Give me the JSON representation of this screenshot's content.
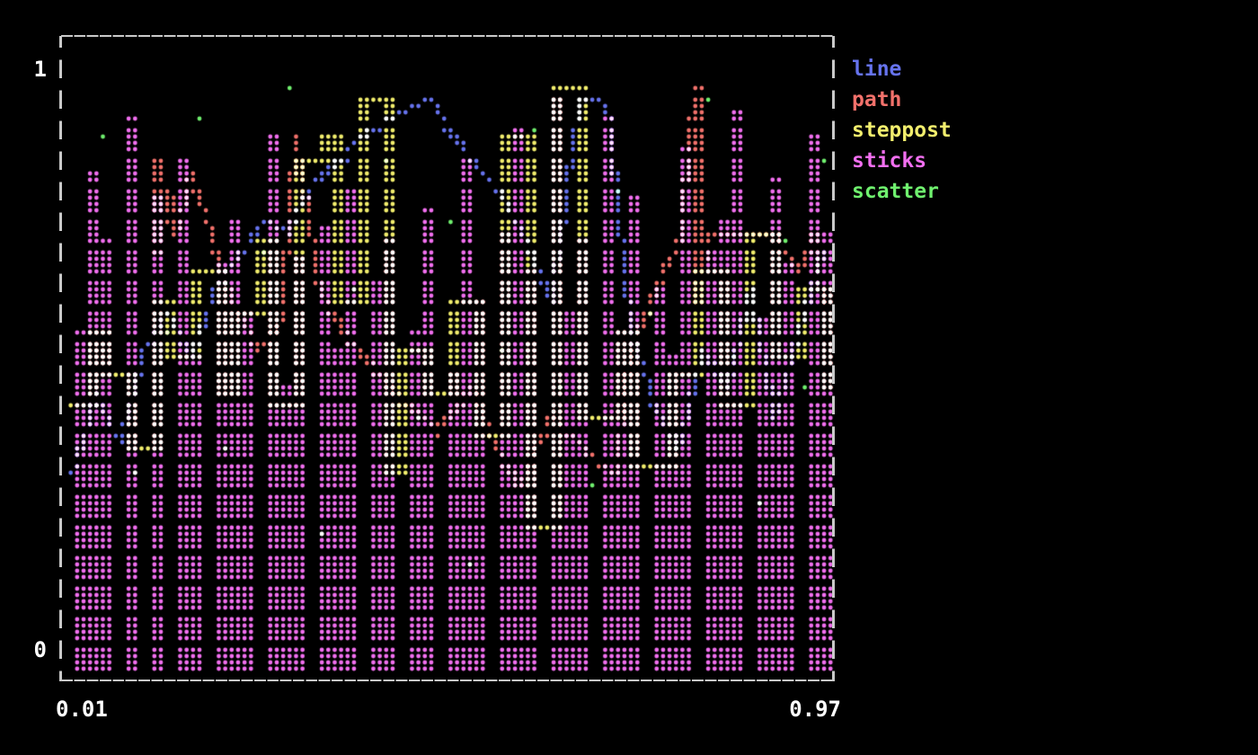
{
  "figure": {
    "background_color": "#000000",
    "frame_color": "#c9c9c9",
    "label_color": "#ffffff"
  },
  "axes": {
    "y_top_label": "1",
    "y_bottom_label": "0",
    "x_left_label": "0.01",
    "x_right_label": "0.97"
  },
  "chart_data": {
    "type": "mixed",
    "title": "",
    "xlabel": "",
    "ylabel": "",
    "xlim": [
      0.01,
      0.97
    ],
    "ylim": [
      0,
      1
    ],
    "grid": false,
    "legend_position": "top-right-outside",
    "render_style": "terminal-braille-dots-additive-blend",
    "series": [
      {
        "name": "line",
        "type": "line",
        "color": "#6673ee",
        "x": [
          0.02,
          0.05,
          0.08,
          0.11,
          0.14,
          0.17,
          0.2,
          0.23,
          0.26,
          0.29,
          0.32,
          0.35,
          0.38,
          0.41,
          0.44,
          0.47,
          0.5,
          0.53,
          0.56,
          0.59,
          0.62,
          0.655,
          0.69,
          0.72,
          0.75,
          0.78,
          0.81,
          0.84,
          0.87,
          0.9,
          0.93,
          0.96
        ],
        "y": [
          0.3,
          0.44,
          0.36,
          0.52,
          0.58,
          0.5,
          0.63,
          0.68,
          0.74,
          0.72,
          0.8,
          0.84,
          0.88,
          0.91,
          0.93,
          0.95,
          0.88,
          0.83,
          0.78,
          0.7,
          0.6,
          0.95,
          0.94,
          0.55,
          0.42,
          0.35,
          0.52,
          0.45,
          0.62,
          0.4,
          0.55,
          0.68
        ]
      },
      {
        "name": "path",
        "type": "path",
        "color": "#f2716b",
        "x": [
          0.12,
          0.13,
          0.13,
          0.14,
          0.15,
          0.17,
          0.19,
          0.22,
          0.25,
          0.28,
          0.3,
          0.31,
          0.33,
          0.36,
          0.4,
          0.44,
          0.48,
          0.52,
          0.55,
          0.58,
          0.62,
          0.66,
          0.7,
          0.72,
          0.75,
          0.78,
          0.8,
          0.8,
          0.82,
          0.86,
          0.9,
          0.93,
          0.95,
          0.96
        ],
        "y": [
          0.75,
          0.85,
          0.68,
          0.8,
          0.72,
          0.82,
          0.74,
          0.6,
          0.52,
          0.56,
          0.88,
          0.8,
          0.62,
          0.55,
          0.48,
          0.42,
          0.38,
          0.45,
          0.35,
          0.28,
          0.4,
          0.35,
          0.3,
          0.52,
          0.62,
          0.7,
          0.97,
          0.6,
          0.72,
          0.72,
          0.72,
          0.65,
          0.72,
          0.6
        ]
      },
      {
        "name": "steppost",
        "type": "steppost",
        "color": "#f2ee6d",
        "x": [
          0.02,
          0.045,
          0.07,
          0.095,
          0.12,
          0.15,
          0.175,
          0.2,
          0.225,
          0.25,
          0.28,
          0.305,
          0.33,
          0.355,
          0.39,
          0.415,
          0.44,
          0.47,
          0.5,
          0.53,
          0.565,
          0.6,
          0.63,
          0.665,
          0.7,
          0.73,
          0.765,
          0.8,
          0.83,
          0.865,
          0.9,
          0.935,
          0.97
        ],
        "y": [
          0.42,
          0.55,
          0.48,
          0.35,
          0.6,
          0.5,
          0.65,
          0.44,
          0.58,
          0.7,
          0.42,
          0.85,
          0.88,
          0.6,
          0.95,
          0.3,
          0.52,
          0.44,
          0.6,
          0.38,
          0.88,
          0.22,
          0.97,
          0.4,
          0.55,
          0.33,
          0.48,
          0.65,
          0.42,
          0.72,
          0.5,
          0.62,
          0.45
        ]
      },
      {
        "name": "sticks",
        "type": "sticks",
        "color": "#f26ff0",
        "x": [
          0.03,
          0.05,
          0.07,
          0.1,
          0.12,
          0.135,
          0.16,
          0.18,
          0.2,
          0.225,
          0.245,
          0.27,
          0.285,
          0.31,
          0.33,
          0.35,
          0.375,
          0.4,
          0.42,
          0.445,
          0.465,
          0.49,
          0.51,
          0.53,
          0.555,
          0.575,
          0.6,
          0.62,
          0.64,
          0.66,
          0.685,
          0.705,
          0.73,
          0.75,
          0.77,
          0.795,
          0.815,
          0.84,
          0.86,
          0.88,
          0.905,
          0.925,
          0.945,
          0.96
        ],
        "y": [
          0.55,
          0.82,
          0.7,
          0.92,
          0.6,
          0.78,
          0.85,
          0.5,
          0.66,
          0.74,
          0.58,
          0.88,
          0.45,
          0.67,
          0.73,
          0.52,
          0.8,
          0.63,
          0.7,
          0.55,
          0.76,
          0.48,
          0.85,
          0.6,
          0.72,
          0.9,
          0.65,
          0.95,
          0.58,
          0.7,
          0.92,
          0.55,
          0.78,
          0.62,
          0.5,
          0.86,
          0.68,
          0.74,
          0.93,
          0.57,
          0.81,
          0.66,
          0.88,
          0.72
        ]
      },
      {
        "name": "scatter",
        "type": "scatter",
        "color": "#6ff06e",
        "x": [
          0.06,
          0.1,
          0.14,
          0.18,
          0.21,
          0.26,
          0.29,
          0.33,
          0.37,
          0.41,
          0.45,
          0.49,
          0.52,
          0.56,
          0.6,
          0.63,
          0.67,
          0.7,
          0.74,
          0.78,
          0.82,
          0.85,
          0.88,
          0.91,
          0.94,
          0.965
        ],
        "y": [
          0.88,
          0.3,
          0.55,
          0.92,
          0.35,
          0.68,
          0.97,
          0.2,
          0.62,
          0.85,
          0.4,
          0.75,
          0.15,
          0.52,
          0.9,
          0.45,
          0.28,
          0.8,
          0.58,
          0.35,
          0.95,
          0.5,
          0.25,
          0.7,
          0.45,
          0.85
        ]
      }
    ]
  }
}
